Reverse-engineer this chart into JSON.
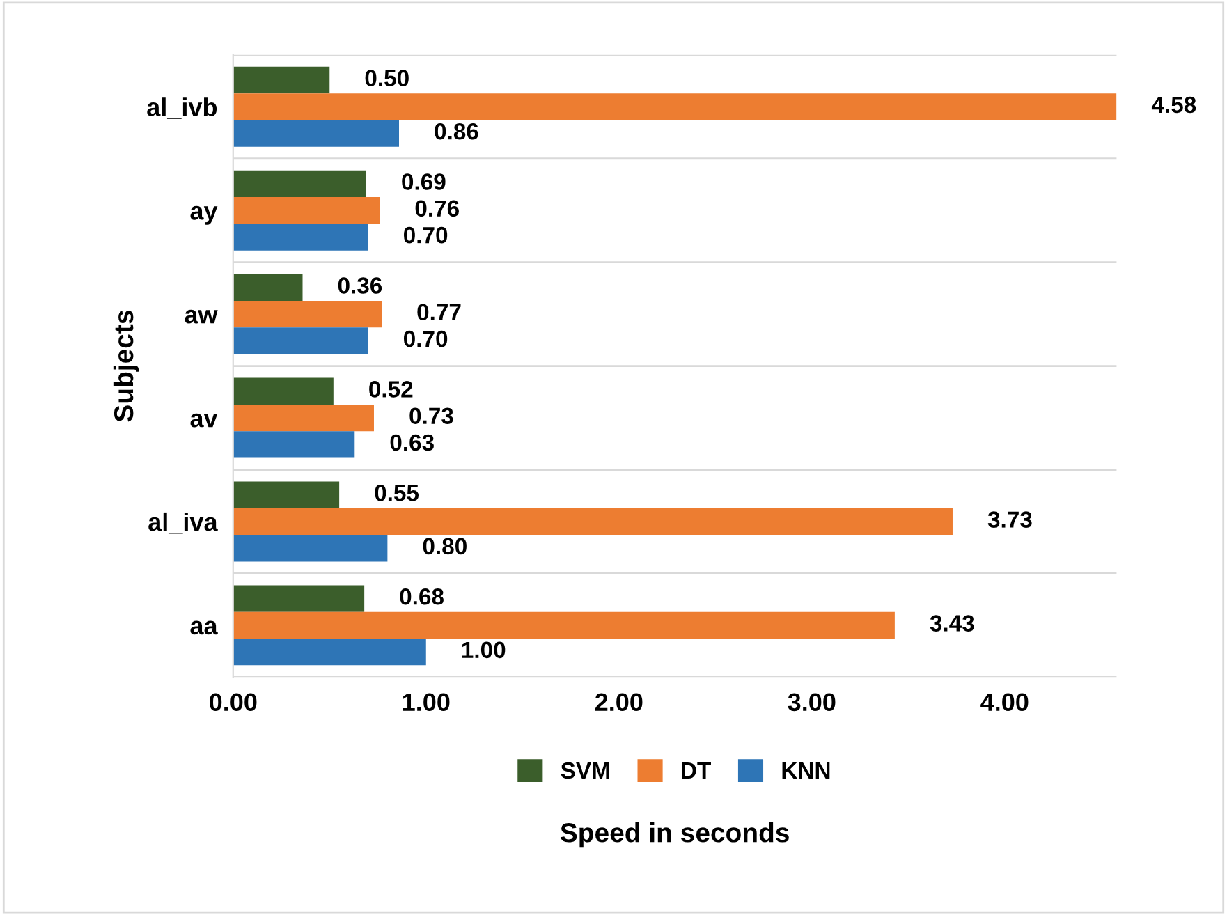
{
  "chart_data": {
    "type": "bar",
    "orientation": "horizontal",
    "xlabel": "Speed in seconds",
    "ylabel": "Subjects",
    "categories": [
      "al_ivb",
      "ay",
      "aw",
      "av",
      "al_iva",
      "aa"
    ],
    "series": [
      {
        "name": "SVM",
        "color": "#3b5e2b",
        "values": [
          0.5,
          0.69,
          0.36,
          0.52,
          0.55,
          0.68
        ],
        "value_labels": [
          "0.50",
          "0.69",
          "0.36",
          "0.52",
          "0.55",
          "0.68"
        ]
      },
      {
        "name": "DT",
        "color": "#ed7d31",
        "values": [
          4.58,
          0.76,
          0.77,
          0.73,
          3.73,
          3.43
        ],
        "value_labels": [
          "4.58",
          "0.76",
          "0.77",
          "0.73",
          "3.73",
          "3.43"
        ]
      },
      {
        "name": "KNN",
        "color": "#2e75b6",
        "values": [
          0.86,
          0.7,
          0.7,
          0.63,
          0.8,
          1.0
        ],
        "value_labels": [
          "0.86",
          "0.70",
          "0.70",
          "0.63",
          "0.80",
          "1.00"
        ]
      }
    ],
    "xlim": [
      0,
      4.58
    ],
    "xticks": [
      {
        "value": 0,
        "label": "0.00"
      },
      {
        "value": 1,
        "label": "1.00"
      },
      {
        "value": 2,
        "label": "2.00"
      },
      {
        "value": 3,
        "label": "3.00"
      },
      {
        "value": 4,
        "label": "4.00"
      }
    ],
    "grid": "y",
    "legend": "bottom"
  }
}
